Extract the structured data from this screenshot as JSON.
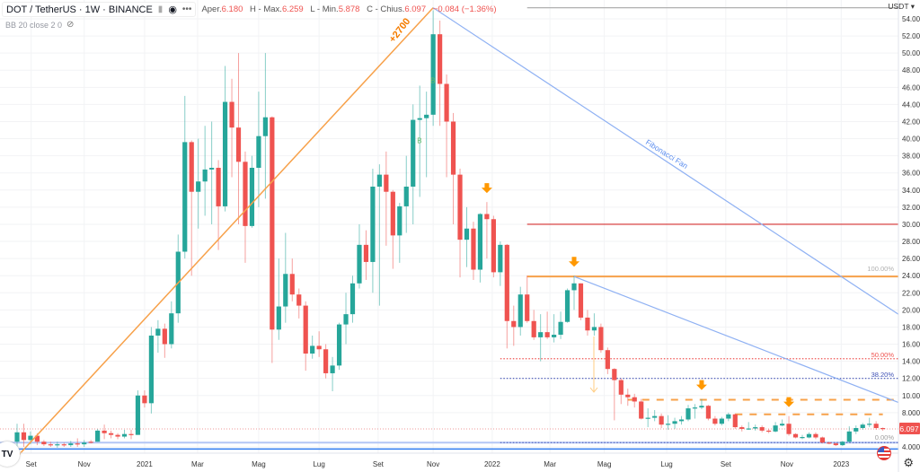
{
  "legend": {
    "symbol": "DOT / TetherUS · 1W · BINANCE",
    "open_label": "Aper.",
    "open": "6.180",
    "high_label": "H - Max.",
    "high": "6.259",
    "low_label": "L - Min.",
    "low": "5.878",
    "close_label": "C - Chius.",
    "close": "6.097",
    "change": "−0.084 (−1.36%)",
    "indicator": "BB 20 close 2 0"
  },
  "axis": {
    "currency": "USDT ▾",
    "y_ticks": [
      54,
      52,
      50,
      48,
      46,
      44,
      42,
      40,
      38,
      36,
      34,
      32,
      30,
      28,
      26,
      24,
      22,
      20,
      18,
      16,
      14,
      12,
      10,
      8,
      4
    ],
    "last_price": "6.097",
    "x_labels": [
      {
        "label": "Set",
        "week": 2.1
      },
      {
        "label": "Nov",
        "week": 10
      },
      {
        "label": "2021",
        "week": 19
      },
      {
        "label": "Mar",
        "week": 26.9
      },
      {
        "label": "Mag",
        "week": 36
      },
      {
        "label": "Lug",
        "week": 45
      },
      {
        "label": "Set",
        "week": 53.8
      },
      {
        "label": "Nov",
        "week": 62
      },
      {
        "label": "2022",
        "week": 70.8
      },
      {
        "label": "Mar",
        "week": 79.4
      },
      {
        "label": "Mag",
        "week": 87.5
      },
      {
        "label": "Lug",
        "week": 96.8
      },
      {
        "label": "Set",
        "week": 105.6
      },
      {
        "label": "Nov",
        "week": 114.7
      },
      {
        "label": "2023",
        "week": 122.8
      }
    ]
  },
  "colors": {
    "up": "#26a69a",
    "down": "#ef5350",
    "orange": "#f7a14a",
    "fan": "#8fb1f3",
    "red_line": "#d32f2f",
    "blue_dot": "#3f51b5"
  },
  "annotations": {
    "gain_label": "+2700",
    "fan_label": "Fibonacci Fan",
    "fib_100": "100.00%",
    "fib_50": "50.00%",
    "fib_382": "38.20%",
    "fib_0": "0.00%",
    "signal_label": "B"
  },
  "chart_data": {
    "type": "candlestick",
    "interval": "1W",
    "first_week": -1,
    "ylim": [
      2,
      56
    ],
    "candles_ohlc": [
      [
        2.5,
        4.0,
        2.0,
        3.9
      ],
      [
        4.6,
        6.7,
        3.8,
        5.7
      ],
      [
        5.7,
        6.7,
        4.0,
        4.8
      ],
      [
        4.8,
        5.8,
        4.3,
        5.3
      ],
      [
        5.3,
        5.6,
        4.2,
        4.6
      ],
      [
        4.6,
        4.8,
        4.1,
        4.3
      ],
      [
        4.3,
        4.6,
        4.0,
        4.2
      ],
      [
        4.2,
        4.6,
        3.9,
        4.3
      ],
      [
        4.3,
        4.5,
        4.0,
        4.2
      ],
      [
        4.2,
        4.7,
        4.0,
        4.4
      ],
      [
        4.4,
        5.0,
        4.0,
        4.3
      ],
      [
        4.3,
        4.8,
        4.0,
        4.5
      ],
      [
        4.6,
        4.8,
        4.4,
        4.5
      ],
      [
        4.6,
        6.1,
        4.6,
        5.9
      ],
      [
        5.9,
        6.6,
        4.9,
        5.6
      ],
      [
        5.6,
        5.9,
        5.0,
        5.4
      ],
      [
        5.4,
        5.6,
        4.9,
        5.2
      ],
      [
        5.2,
        6.0,
        5.0,
        5.5
      ],
      [
        5.5,
        6.0,
        4.9,
        5.4
      ],
      [
        5.4,
        10.6,
        5.4,
        10.0
      ],
      [
        10.0,
        10.6,
        8.6,
        9.1
      ],
      [
        9.1,
        18.0,
        7.9,
        17.0
      ],
      [
        17.0,
        18.8,
        15.0,
        17.8
      ],
      [
        17.8,
        18.4,
        14.4,
        16.0
      ],
      [
        16.0,
        21.0,
        15.5,
        19.6
      ],
      [
        19.6,
        28.8,
        18.5,
        26.8
      ],
      [
        26.8,
        45.0,
        26.0,
        39.6
      ],
      [
        39.6,
        39.8,
        24.0,
        33.8
      ],
      [
        33.8,
        40.0,
        29.5,
        35.0
      ],
      [
        35.0,
        41.5,
        31.0,
        36.4
      ],
      [
        36.4,
        42.0,
        30.0,
        36.6
      ],
      [
        36.6,
        37.5,
        27.0,
        32.1
      ],
      [
        32.1,
        48.5,
        31.5,
        44.3
      ],
      [
        44.3,
        47.0,
        35.5,
        41.3
      ],
      [
        41.3,
        50.0,
        30.0,
        37.3
      ],
      [
        37.3,
        38.5,
        25.5,
        29.8
      ],
      [
        29.8,
        38.0,
        29.6,
        36.6
      ],
      [
        36.6,
        45.5,
        32.0,
        40.3
      ],
      [
        40.3,
        50.0,
        33.0,
        42.5
      ],
      [
        42.5,
        42.6,
        13.8,
        17.7
      ],
      [
        17.7,
        26.0,
        16.5,
        20.4
      ],
      [
        20.4,
        29.0,
        18.5,
        24.2
      ],
      [
        24.2,
        26.0,
        21.0,
        21.8
      ],
      [
        21.8,
        22.5,
        19.0,
        20.5
      ],
      [
        20.5,
        21.0,
        12.9,
        14.9
      ],
      [
        14.9,
        17.0,
        14.3,
        15.8
      ],
      [
        15.8,
        17.5,
        14.5,
        15.4
      ],
      [
        15.4,
        16.0,
        12.0,
        12.6
      ],
      [
        12.6,
        14.5,
        10.5,
        13.5
      ],
      [
        13.5,
        18.5,
        13.0,
        18.3
      ],
      [
        18.3,
        22.0,
        16.0,
        19.5
      ],
      [
        19.5,
        24.0,
        18.5,
        23.1
      ],
      [
        23.1,
        30.0,
        22.5,
        27.6
      ],
      [
        27.6,
        29.3,
        23.5,
        25.6
      ],
      [
        25.6,
        36.5,
        22.0,
        34.4
      ],
      [
        34.4,
        37.0,
        20.5,
        35.8
      ],
      [
        35.8,
        38.5,
        27.5,
        33.8
      ],
      [
        33.8,
        34.0,
        24.8,
        28.7
      ],
      [
        28.7,
        32.5,
        25.5,
        32.1
      ],
      [
        32.1,
        38.0,
        29.0,
        34.4
      ],
      [
        34.4,
        44.0,
        30.0,
        42.2
      ],
      [
        42.2,
        46.2,
        33.2,
        42.4
      ],
      [
        42.4,
        45.5,
        35.5,
        42.8
      ],
      [
        42.8,
        55.0,
        41.5,
        52.2
      ],
      [
        52.2,
        53.8,
        41.5,
        46.4
      ],
      [
        46.4,
        47.5,
        35.5,
        42.0
      ],
      [
        42.0,
        43.0,
        30.0,
        35.8
      ],
      [
        35.8,
        36.5,
        23.8,
        28.2
      ],
      [
        28.2,
        32.0,
        25.0,
        29.5
      ],
      [
        29.5,
        30.3,
        23.5,
        24.7
      ],
      [
        24.7,
        31.3,
        23.2,
        31.2
      ],
      [
        31.2,
        32.6,
        26.0,
        30.6
      ],
      [
        30.6,
        31.0,
        23.8,
        24.4
      ],
      [
        24.4,
        28.0,
        22.8,
        27.6
      ],
      [
        27.6,
        27.7,
        15.5,
        18.7
      ],
      [
        18.7,
        20.5,
        15.8,
        18.0
      ],
      [
        18.0,
        22.7,
        17.0,
        21.8
      ],
      [
        21.8,
        24.0,
        18.5,
        18.7
      ],
      [
        18.7,
        20.0,
        16.5,
        16.8
      ],
      [
        16.8,
        19.5,
        14.0,
        17.4
      ],
      [
        17.4,
        19.8,
        16.6,
        16.8
      ],
      [
        16.8,
        19.5,
        16.2,
        17.1
      ],
      [
        17.1,
        19.8,
        16.6,
        18.6
      ],
      [
        18.6,
        22.5,
        18.5,
        22.3
      ],
      [
        22.3,
        24.0,
        20.0,
        23.1
      ],
      [
        23.1,
        23.1,
        18.8,
        19.1
      ],
      [
        19.1,
        20.0,
        17.0,
        17.6
      ],
      [
        17.6,
        19.6,
        17.0,
        18.0
      ],
      [
        18.0,
        18.4,
        15.0,
        15.3
      ],
      [
        15.3,
        15.6,
        12.5,
        13.1
      ],
      [
        13.1,
        13.2,
        7.1,
        11.8
      ],
      [
        11.8,
        12.0,
        9.0,
        10.1
      ],
      [
        10.1,
        10.8,
        8.8,
        9.8
      ],
      [
        9.8,
        10.2,
        8.6,
        9.3
      ],
      [
        9.3,
        9.6,
        7.2,
        7.3
      ],
      [
        7.3,
        8.5,
        6.3,
        7.4
      ],
      [
        7.4,
        8.3,
        7.0,
        7.6
      ],
      [
        7.6,
        7.9,
        6.2,
        6.6
      ],
      [
        6.6,
        7.7,
        6.0,
        6.7
      ],
      [
        6.7,
        7.4,
        6.1,
        7.0
      ],
      [
        7.0,
        7.6,
        6.6,
        7.2
      ],
      [
        7.2,
        8.9,
        7.0,
        8.5
      ],
      [
        8.5,
        9.0,
        7.3,
        8.6
      ],
      [
        8.6,
        9.6,
        8.4,
        8.8
      ],
      [
        8.8,
        8.9,
        7.1,
        7.3
      ],
      [
        7.3,
        7.6,
        6.5,
        6.7
      ],
      [
        6.7,
        7.5,
        6.5,
        7.3
      ],
      [
        7.3,
        8.0,
        7.0,
        7.8
      ],
      [
        7.8,
        7.9,
        6.1,
        6.3
      ],
      [
        6.3,
        6.5,
        5.8,
        6.1
      ],
      [
        6.1,
        6.9,
        6.0,
        6.15
      ],
      [
        6.15,
        6.6,
        5.9,
        6.3
      ],
      [
        6.3,
        6.5,
        5.7,
        5.9
      ],
      [
        5.9,
        6.1,
        5.6,
        5.8
      ],
      [
        5.8,
        6.9,
        5.7,
        6.5
      ],
      [
        6.5,
        7.2,
        6.4,
        6.7
      ],
      [
        6.7,
        7.6,
        5.3,
        5.5
      ],
      [
        5.5,
        5.6,
        5.0,
        5.1
      ],
      [
        5.1,
        5.4,
        4.9,
        5.15
      ],
      [
        5.1,
        5.7,
        5.0,
        5.5
      ],
      [
        5.5,
        5.7,
        4.9,
        5.1
      ],
      [
        5.1,
        5.2,
        4.4,
        4.5
      ],
      [
        4.5,
        4.6,
        4.3,
        4.4
      ],
      [
        4.4,
        4.5,
        4.1,
        4.2
      ],
      [
        4.2,
        4.7,
        4.1,
        4.6
      ],
      [
        4.6,
        6.4,
        4.5,
        5.8
      ],
      [
        5.8,
        6.5,
        5.5,
        6.2
      ],
      [
        6.2,
        6.8,
        6.0,
        6.6
      ],
      [
        6.6,
        7.4,
        6.3,
        6.7
      ],
      [
        6.7,
        7.0,
        6.0,
        6.2
      ],
      [
        6.2,
        6.26,
        5.88,
        6.1
      ]
    ],
    "drawings": {
      "trend_line": {
        "from": [
          -1,
          2.0
        ],
        "to": [
          62,
          55.3
        ]
      },
      "fan_lines": [
        {
          "from": [
            62,
            55.3
          ],
          "to": [
            131.3,
            19.5
          ]
        },
        {
          "from": [
            83,
            23.9
          ],
          "to": [
            131.3,
            9.2
          ]
        }
      ],
      "hlines": [
        {
          "name": "top-grey-line",
          "price": 55.3,
          "start": 76,
          "style": "solid",
          "color": "#b0b0b0"
        },
        {
          "name": "resistance-30",
          "price": 30,
          "start": 76,
          "style": "solid",
          "color": "#d32f2f"
        },
        {
          "name": "fib-100",
          "price": 23.9,
          "start": 76,
          "style": "solid-thick",
          "color": "#f7a14a"
        },
        {
          "name": "fib-50",
          "price": 14.3,
          "start": 72,
          "style": "dotted",
          "color": "#ef5350"
        },
        {
          "name": "fib-382",
          "price": 12.0,
          "start": 72,
          "style": "dotted",
          "color": "#3f51b5"
        },
        {
          "name": "dashed-9.5",
          "price": 9.5,
          "start": 91,
          "style": "dashed",
          "color": "#f7a14a"
        },
        {
          "name": "dashed-7.8",
          "price": 7.8,
          "start": 107,
          "end": 129,
          "style": "dashed",
          "color": "#f7a14a"
        },
        {
          "name": "fib-0",
          "price": 4.5,
          "start": 72,
          "style": "dotted",
          "color": "#5c6bc0"
        }
      ],
      "arrows": [
        [
          70,
          32.6
        ],
        [
          83,
          24.0
        ],
        [
          102,
          9.6
        ],
        [
          115,
          7.6
        ]
      ],
      "signals": [
        [
          62,
          46.5
        ],
        [
          60,
          39.5
        ]
      ]
    }
  }
}
